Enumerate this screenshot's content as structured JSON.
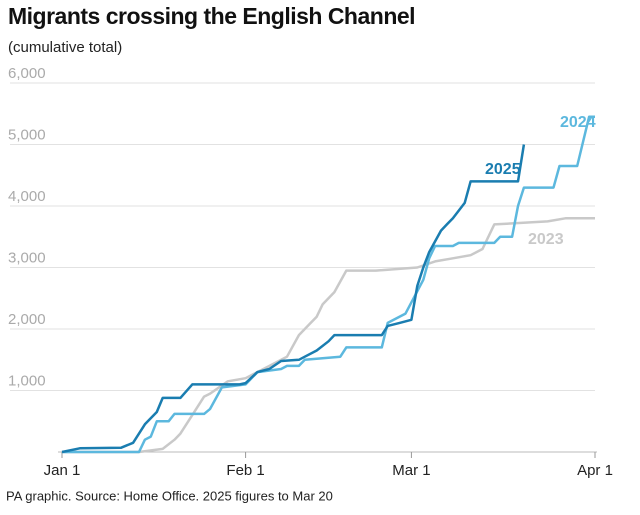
{
  "chart_data": {
    "type": "line",
    "title": "Migrants crossing the English Channel",
    "subtitle": "(cumulative total)",
    "source": "PA graphic. Source: Home Office. 2025 figures to Mar 20",
    "xlim": [
      0,
      90
    ],
    "xticks": [
      {
        "value": 0,
        "label": "Jan 1"
      },
      {
        "value": 31,
        "label": "Feb 1"
      },
      {
        "value": 59,
        "label": "Mar 1"
      },
      {
        "value": 90,
        "label": "Apr 1"
      }
    ],
    "ylim": [
      0,
      6000
    ],
    "yticks": [
      {
        "value": 1000,
        "label": "1,000"
      },
      {
        "value": 2000,
        "label": "2,000"
      },
      {
        "value": 3000,
        "label": "3,000"
      },
      {
        "value": 4000,
        "label": "4,000"
      },
      {
        "value": 5000,
        "label": "5,000"
      },
      {
        "value": 6000,
        "label": "6,000"
      }
    ],
    "grid": true,
    "series": [
      {
        "name": "2023",
        "color": "#c9c9c9",
        "x": [
          0,
          13,
          17,
          19,
          20,
          22,
          24,
          25,
          28,
          31,
          33,
          38,
          40,
          42,
          43,
          44,
          46,
          48,
          53,
          60,
          63,
          66,
          69,
          71,
          73,
          82,
          85,
          90
        ],
        "values": [
          0,
          0,
          50,
          200,
          300,
          600,
          900,
          950,
          1150,
          1200,
          1300,
          1550,
          1900,
          2100,
          2200,
          2400,
          2600,
          2950,
          2950,
          3000,
          3100,
          3150,
          3200,
          3300,
          3700,
          3750,
          3800,
          3800
        ]
      },
      {
        "name": "2024",
        "color": "#5cb8de",
        "x": [
          0,
          13,
          14,
          15,
          16,
          18,
          19,
          24,
          25,
          27,
          31,
          33,
          37,
          38,
          40,
          41,
          47,
          48,
          54,
          55,
          58,
          61,
          62,
          63,
          66,
          67,
          73,
          74,
          76,
          77,
          78,
          83,
          84,
          87,
          89,
          90
        ],
        "values": [
          0,
          0,
          200,
          250,
          500,
          500,
          620,
          620,
          700,
          1050,
          1100,
          1300,
          1350,
          1400,
          1400,
          1500,
          1550,
          1700,
          1700,
          2100,
          2250,
          2800,
          3150,
          3350,
          3350,
          3400,
          3400,
          3500,
          3500,
          4000,
          4300,
          4300,
          4650,
          4650,
          5450,
          5450
        ]
      },
      {
        "name": "2025",
        "color": "#1a7db0",
        "x": [
          0,
          3,
          10,
          12,
          14,
          16,
          17,
          20,
          22,
          30,
          31,
          33,
          35,
          37,
          40,
          41,
          43,
          45,
          46,
          54,
          55,
          57,
          59,
          60,
          61,
          62,
          64,
          65,
          66,
          68,
          69,
          77,
          78
        ],
        "values": [
          0,
          60,
          70,
          150,
          450,
          650,
          880,
          880,
          1100,
          1100,
          1120,
          1300,
          1350,
          1480,
          1500,
          1550,
          1650,
          1800,
          1900,
          1900,
          2050,
          2100,
          2150,
          2700,
          3000,
          3250,
          3600,
          3700,
          3800,
          4050,
          4400,
          4400,
          5000
        ]
      }
    ]
  }
}
